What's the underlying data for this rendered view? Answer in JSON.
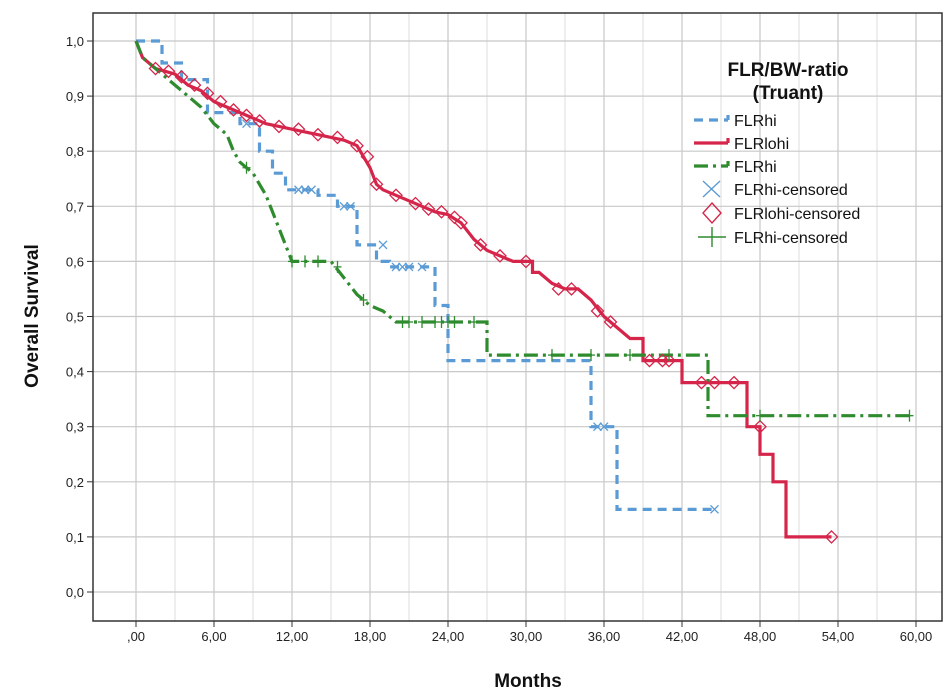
{
  "chart_data": {
    "type": "line",
    "xlabel": "Months",
    "ylabel": "Overall Survival",
    "xlim": [
      0,
      60
    ],
    "ylim": [
      0,
      1
    ],
    "x_ticks": [
      ",00",
      "6,00",
      "12,00",
      "18,00",
      "24,00",
      "30,00",
      "36,00",
      "42,00",
      "48,00",
      "54,00",
      "60,00"
    ],
    "y_ticks": [
      "0,0",
      "0,1",
      "0,2",
      "0,3",
      "0,4",
      "0,5",
      "0,6",
      "0,7",
      "0,8",
      "0,9",
      "1,0"
    ],
    "grid": true,
    "legend": {
      "title": "FLR/BW-ratio\n(Truant)",
      "position": "top-right",
      "entries": [
        "FLRhi",
        "FLRlohi",
        "FLRhi",
        "FLRhi-censored",
        "FLRlohi-censored",
        "FLRhi-censored"
      ]
    },
    "series": [
      {
        "name": "FLRhi",
        "color": "#5b9bd5",
        "style": "dashed",
        "points": [
          [
            0,
            1.0
          ],
          [
            2,
            1.0
          ],
          [
            2,
            0.96
          ],
          [
            3.5,
            0.96
          ],
          [
            3.5,
            0.93
          ],
          [
            5.5,
            0.93
          ],
          [
            5.5,
            0.87
          ],
          [
            8,
            0.87
          ],
          [
            8,
            0.85
          ],
          [
            9.5,
            0.85
          ],
          [
            9.5,
            0.8
          ],
          [
            10.5,
            0.8
          ],
          [
            10.5,
            0.76
          ],
          [
            11.5,
            0.76
          ],
          [
            11.5,
            0.73
          ],
          [
            14,
            0.73
          ],
          [
            14,
            0.72
          ],
          [
            15.5,
            0.72
          ],
          [
            15.5,
            0.7
          ],
          [
            17,
            0.7
          ],
          [
            17,
            0.63
          ],
          [
            18.5,
            0.63
          ],
          [
            18.5,
            0.6
          ],
          [
            19.5,
            0.6
          ],
          [
            19.5,
            0.59
          ],
          [
            23,
            0.59
          ],
          [
            23,
            0.52
          ],
          [
            24,
            0.52
          ],
          [
            24,
            0.42
          ],
          [
            35,
            0.42
          ],
          [
            35,
            0.3
          ],
          [
            37,
            0.3
          ],
          [
            37,
            0.15
          ],
          [
            44.5,
            0.15
          ]
        ],
        "censored": [
          [
            8.5,
            0.85
          ],
          [
            12.5,
            0.73
          ],
          [
            13,
            0.73
          ],
          [
            13.5,
            0.73
          ],
          [
            16,
            0.7
          ],
          [
            16.5,
            0.7
          ],
          [
            19,
            0.63
          ],
          [
            20,
            0.59
          ],
          [
            20.5,
            0.59
          ],
          [
            21,
            0.59
          ],
          [
            22,
            0.59
          ],
          [
            35.5,
            0.3
          ],
          [
            36,
            0.3
          ],
          [
            44.5,
            0.15
          ]
        ]
      },
      {
        "name": "FLRlohi",
        "color": "#d6254a",
        "style": "solid",
        "points": [
          [
            0,
            1.0
          ],
          [
            0.5,
            0.97
          ],
          [
            1.5,
            0.95
          ],
          [
            3,
            0.94
          ],
          [
            4,
            0.92
          ],
          [
            5,
            0.91
          ],
          [
            6,
            0.89
          ],
          [
            7,
            0.88
          ],
          [
            8,
            0.87
          ],
          [
            9,
            0.86
          ],
          [
            10,
            0.85
          ],
          [
            11,
            0.845
          ],
          [
            12,
            0.84
          ],
          [
            13,
            0.835
          ],
          [
            14,
            0.83
          ],
          [
            15,
            0.825
          ],
          [
            16,
            0.82
          ],
          [
            17,
            0.81
          ],
          [
            17.5,
            0.79
          ],
          [
            18,
            0.77
          ],
          [
            18.5,
            0.74
          ],
          [
            19,
            0.73
          ],
          [
            20,
            0.72
          ],
          [
            21,
            0.71
          ],
          [
            22,
            0.7
          ],
          [
            23,
            0.69
          ],
          [
            24,
            0.685
          ],
          [
            25,
            0.67
          ],
          [
            26,
            0.64
          ],
          [
            27,
            0.62
          ],
          [
            28,
            0.61
          ],
          [
            29,
            0.6
          ],
          [
            30,
            0.6
          ],
          [
            30.5,
            0.6
          ],
          [
            30.5,
            0.58
          ],
          [
            31,
            0.58
          ],
          [
            32,
            0.56
          ],
          [
            33,
            0.55
          ],
          [
            34,
            0.55
          ],
          [
            35,
            0.53
          ],
          [
            36,
            0.5
          ],
          [
            37,
            0.48
          ],
          [
            38,
            0.46
          ],
          [
            39,
            0.46
          ],
          [
            39,
            0.42
          ],
          [
            42,
            0.42
          ],
          [
            42,
            0.38
          ],
          [
            47,
            0.38
          ],
          [
            47,
            0.3
          ],
          [
            48,
            0.3
          ],
          [
            48,
            0.25
          ],
          [
            49,
            0.25
          ],
          [
            49,
            0.2
          ],
          [
            50,
            0.2
          ],
          [
            50,
            0.1
          ],
          [
            53.5,
            0.1
          ]
        ],
        "censored": [
          [
            1.5,
            0.95
          ],
          [
            2.5,
            0.945
          ],
          [
            3.5,
            0.935
          ],
          [
            4.5,
            0.92
          ],
          [
            5.5,
            0.905
          ],
          [
            6.5,
            0.89
          ],
          [
            7.5,
            0.875
          ],
          [
            8.5,
            0.865
          ],
          [
            9.5,
            0.855
          ],
          [
            11,
            0.845
          ],
          [
            12.5,
            0.84
          ],
          [
            14,
            0.83
          ],
          [
            15.5,
            0.825
          ],
          [
            17,
            0.81
          ],
          [
            17.8,
            0.79
          ],
          [
            18.5,
            0.74
          ],
          [
            20,
            0.72
          ],
          [
            21.5,
            0.705
          ],
          [
            22.5,
            0.695
          ],
          [
            23.5,
            0.69
          ],
          [
            24.5,
            0.68
          ],
          [
            25,
            0.67
          ],
          [
            26.5,
            0.63
          ],
          [
            28,
            0.61
          ],
          [
            30,
            0.6
          ],
          [
            32.5,
            0.55
          ],
          [
            33.5,
            0.55
          ],
          [
            35.5,
            0.51
          ],
          [
            36.5,
            0.49
          ],
          [
            39.5,
            0.42
          ],
          [
            40.5,
            0.42
          ],
          [
            41,
            0.42
          ],
          [
            43.5,
            0.38
          ],
          [
            44.5,
            0.38
          ],
          [
            46,
            0.38
          ],
          [
            48,
            0.3
          ],
          [
            53.5,
            0.1
          ]
        ]
      },
      {
        "name": "FLRhi",
        "color": "#2e8b2e",
        "style": "dashdot",
        "points": [
          [
            0,
            1.0
          ],
          [
            0.5,
            0.97
          ],
          [
            1,
            0.96
          ],
          [
            2,
            0.94
          ],
          [
            3,
            0.92
          ],
          [
            4,
            0.9
          ],
          [
            5,
            0.88
          ],
          [
            6,
            0.85
          ],
          [
            7,
            0.83
          ],
          [
            7.5,
            0.8
          ],
          [
            8,
            0.78
          ],
          [
            9,
            0.76
          ],
          [
            10,
            0.72
          ],
          [
            10.5,
            0.69
          ],
          [
            11,
            0.66
          ],
          [
            11.5,
            0.63
          ],
          [
            12,
            0.6
          ],
          [
            15,
            0.6
          ],
          [
            16,
            0.57
          ],
          [
            17,
            0.54
          ],
          [
            18,
            0.52
          ],
          [
            19,
            0.51
          ],
          [
            20,
            0.49
          ],
          [
            27,
            0.49
          ],
          [
            27,
            0.43
          ],
          [
            44,
            0.43
          ],
          [
            44,
            0.32
          ],
          [
            59.5,
            0.32
          ]
        ],
        "censored": [
          [
            8.5,
            0.77
          ],
          [
            12,
            0.6
          ],
          [
            13,
            0.6
          ],
          [
            14,
            0.6
          ],
          [
            15.5,
            0.59
          ],
          [
            17.5,
            0.53
          ],
          [
            20.5,
            0.49
          ],
          [
            21,
            0.49
          ],
          [
            22,
            0.49
          ],
          [
            23,
            0.49
          ],
          [
            23.5,
            0.49
          ],
          [
            24,
            0.49
          ],
          [
            24.5,
            0.49
          ],
          [
            26,
            0.49
          ],
          [
            32,
            0.43
          ],
          [
            35,
            0.43
          ],
          [
            38,
            0.43
          ],
          [
            41,
            0.43
          ],
          [
            48,
            0.32
          ],
          [
            59.5,
            0.32
          ]
        ]
      }
    ]
  }
}
